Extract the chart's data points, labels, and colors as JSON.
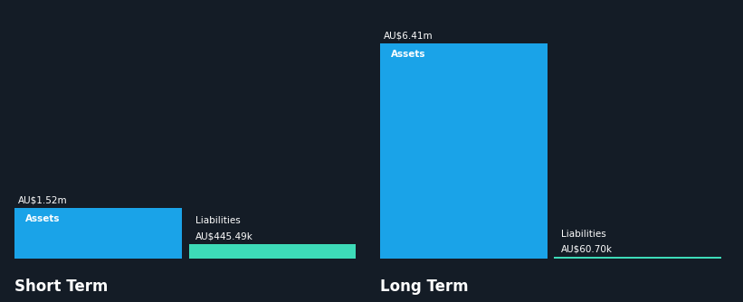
{
  "background_color": "#141c26",
  "short_term": {
    "assets_value": 1.52,
    "liabilities_value": 0.44549,
    "assets_label": "Assets",
    "liabilities_label": "Liabilities",
    "assets_value_label": "AU$1.52m",
    "liabilities_value_label": "AU$445.49k",
    "section_label": "Short Term"
  },
  "long_term": {
    "assets_value": 6.41,
    "liabilities_value": 0.0607,
    "assets_label": "Assets",
    "liabilities_label": "Liabilities",
    "assets_value_label": "AU$6.41m",
    "liabilities_value_label": "AU$60.70k",
    "section_label": "Long Term"
  },
  "assets_color": "#1aa3e8",
  "liabilities_color": "#3ddbb8",
  "text_color": "#ffffff",
  "label_fontsize": 7.5,
  "value_fontsize": 7.5,
  "section_fontsize": 12,
  "inner_label_fontsize": 7.5
}
